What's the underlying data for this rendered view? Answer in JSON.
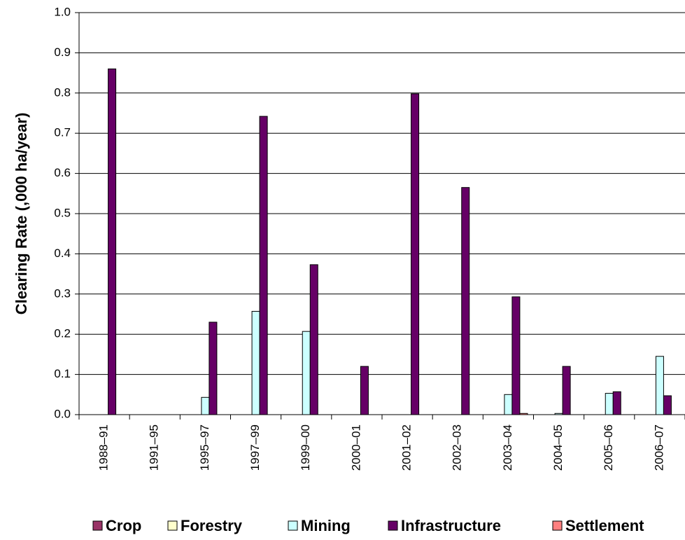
{
  "chart_data": {
    "type": "bar",
    "categories": [
      "1988–91",
      "1991–95",
      "1995–97",
      "1997–99",
      "1999–00",
      "2000–01",
      "2001–02",
      "2002–03",
      "2003–04",
      "2004–05",
      "2005–06",
      "2006–07"
    ],
    "series": [
      {
        "name": "Crop",
        "color": "#993366",
        "values": [
          0,
          0,
          0,
          0,
          0,
          0,
          0,
          0,
          0,
          0,
          0,
          0
        ]
      },
      {
        "name": "Forestry",
        "color": "#ffffcc",
        "values": [
          0,
          0,
          0,
          0,
          0,
          0,
          0,
          0,
          0,
          0,
          0,
          0
        ]
      },
      {
        "name": "Mining",
        "color": "#ccffff",
        "values": [
          0,
          0,
          0.043,
          0.257,
          0.207,
          0,
          0,
          0,
          0.05,
          0.003,
          0.053,
          0.145
        ]
      },
      {
        "name": "Infrastructure",
        "color": "#660066",
        "values": [
          0.86,
          0,
          0.23,
          0.742,
          0.373,
          0.12,
          0.798,
          0.565,
          0.293,
          0.12,
          0.057,
          0.047
        ]
      },
      {
        "name": "Settlement",
        "color": "#ff8080",
        "values": [
          0,
          0,
          0,
          0,
          0,
          0,
          0,
          0,
          0.003,
          0,
          0,
          0
        ]
      }
    ],
    "y_label": "Clearing Rate (,000 ha/year)",
    "ylim": [
      0,
      1
    ],
    "yticks": [
      {
        "value": 0,
        "label": "0.0"
      },
      {
        "value": 0.1,
        "label": "0.1"
      },
      {
        "value": 0.2,
        "label": "0.2"
      },
      {
        "value": 0.3,
        "label": "0.3"
      },
      {
        "value": 0.4,
        "label": "0.4"
      },
      {
        "value": 0.5,
        "label": "0.5"
      },
      {
        "value": 0.6,
        "label": "0.6"
      },
      {
        "value": 0.7,
        "label": "0.7"
      },
      {
        "value": 0.8,
        "label": "0.8"
      },
      {
        "value": 0.9,
        "label": "0.9"
      },
      {
        "value": 1,
        "label": "1.0"
      }
    ],
    "grid": true,
    "legend": "bottom"
  }
}
